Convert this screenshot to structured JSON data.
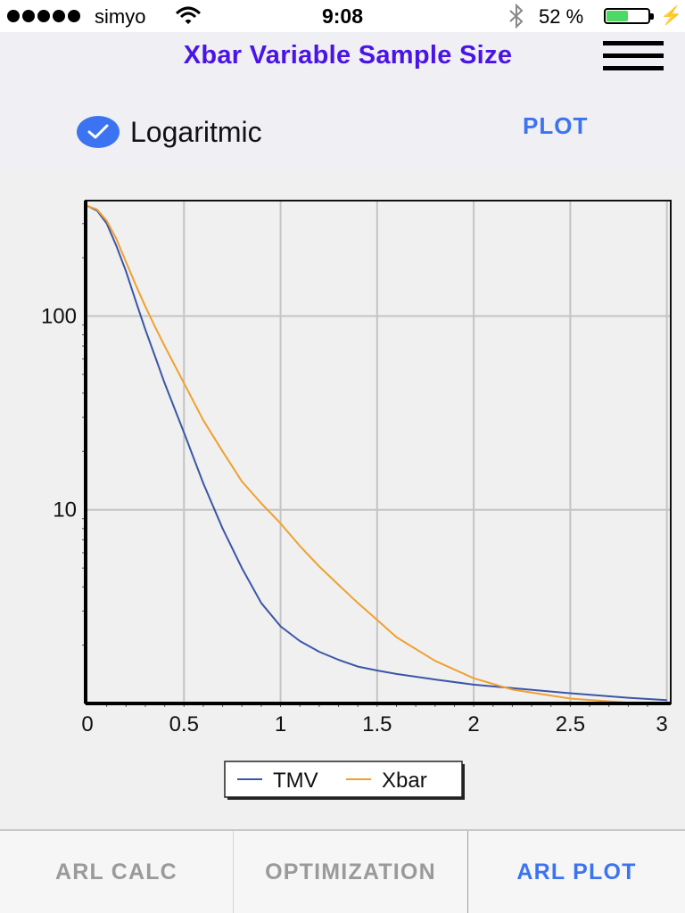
{
  "status_bar": {
    "carrier": "simyo",
    "time": "9:08",
    "battery_text": "52 %",
    "battery_level": 0.52,
    "icons": [
      "signal-dots-icon",
      "wifi-icon",
      "bluetooth-icon",
      "battery-icon",
      "charging-bolt-icon"
    ]
  },
  "header": {
    "title": "Xbar Variable Sample Size",
    "logarithmic_label": "Logaritmic",
    "logarithmic_checked": true,
    "plot_label": "PLOT",
    "menu_icon": "hamburger-menu-icon"
  },
  "tabs": [
    {
      "label": "ARL CALC",
      "active": false
    },
    {
      "label": "OPTIMIZATION",
      "active": false
    },
    {
      "label": "ARL PLOT",
      "active": true
    }
  ],
  "colors": {
    "title": "#4b14e6",
    "accent": "#3b73f0",
    "tmv_line": "#3b56a8",
    "xbar_line": "#f0a030"
  },
  "chart_data": {
    "type": "line",
    "title": "",
    "xlabel": "",
    "ylabel": "",
    "yscale": "log",
    "xlim": [
      0,
      3
    ],
    "ylim": [
      1,
      370
    ],
    "x_ticks": [
      "0",
      "0.5",
      "1",
      "1.5",
      "2",
      "2.5",
      "3"
    ],
    "y_ticks": [
      "10",
      "100"
    ],
    "grid": true,
    "legend_position": "bottom-center",
    "series": [
      {
        "name": "TMV",
        "x": [
          0,
          0.05,
          0.1,
          0.15,
          0.2,
          0.25,
          0.3,
          0.35,
          0.4,
          0.5,
          0.6,
          0.7,
          0.8,
          0.9,
          1.0,
          1.1,
          1.2,
          1.3,
          1.4,
          1.5,
          1.6,
          1.8,
          2.0,
          2.2,
          2.5,
          2.8,
          3.0
        ],
        "values": [
          370,
          350,
          300,
          230,
          170,
          120,
          85,
          62,
          45,
          25,
          13.7,
          8,
          5,
          3.3,
          2.5,
          2.1,
          1.85,
          1.68,
          1.55,
          1.48,
          1.42,
          1.33,
          1.25,
          1.2,
          1.13,
          1.07,
          1.04
        ]
      },
      {
        "name": "Xbar",
        "x": [
          0,
          0.05,
          0.1,
          0.15,
          0.2,
          0.25,
          0.3,
          0.35,
          0.4,
          0.5,
          0.6,
          0.7,
          0.8,
          0.9,
          1.0,
          1.1,
          1.2,
          1.3,
          1.4,
          1.5,
          1.6,
          1.8,
          2.0,
          2.2,
          2.5,
          2.8,
          3.0
        ],
        "values": [
          370,
          355,
          310,
          250,
          190,
          145,
          112,
          88,
          70,
          45,
          29,
          20,
          14,
          10.8,
          8.5,
          6.5,
          5.1,
          4.1,
          3.3,
          2.7,
          2.2,
          1.66,
          1.35,
          1.18,
          1.06,
          1.01,
          1.0
        ]
      }
    ]
  }
}
